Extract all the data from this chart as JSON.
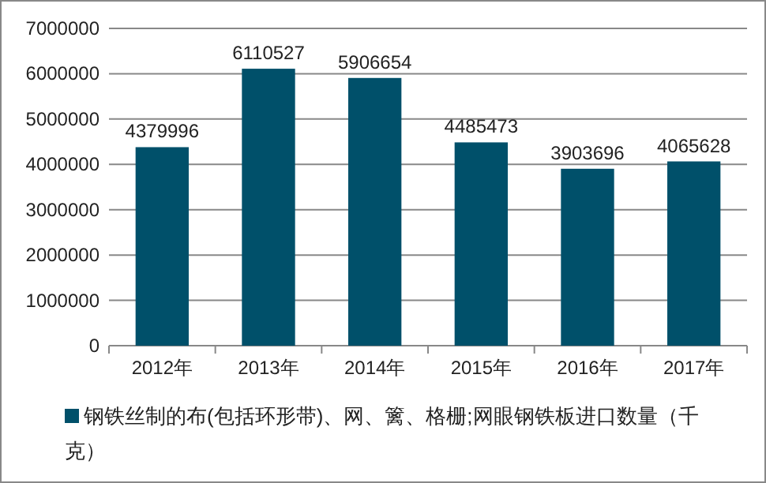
{
  "chart_data": {
    "type": "bar",
    "categories": [
      "2012年",
      "2013年",
      "2014年",
      "2015年",
      "2016年",
      "2017年"
    ],
    "series": [
      {
        "name": "钢铁丝制的布(包括环形带)、网、篱、格栅;网眼钢铁板进口数量（千克）",
        "color": "#00506a",
        "values": [
          4379996,
          6110527,
          5906654,
          4485473,
          3903696,
          4065628
        ]
      }
    ],
    "ylim": [
      0,
      7000000
    ],
    "yticks": [
      0,
      1000000,
      2000000,
      3000000,
      4000000,
      5000000,
      6000000,
      7000000
    ],
    "data_labels": true,
    "grid": "y",
    "legend": "bottom"
  }
}
